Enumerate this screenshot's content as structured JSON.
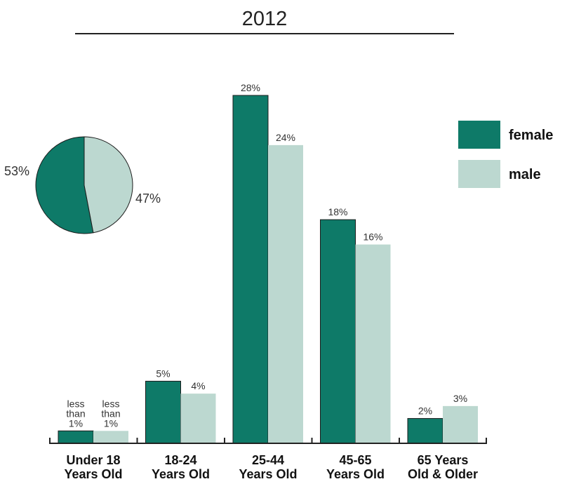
{
  "chart_data": [
    {
      "type": "bar",
      "title": "2012",
      "categories": [
        [
          "Under 18",
          "Years Old"
        ],
        [
          "18-24",
          "Years Old"
        ],
        [
          "25-44",
          "Years Old"
        ],
        [
          "45-65",
          "Years Old"
        ],
        [
          "65 Years",
          "Old & Older"
        ]
      ],
      "series": [
        {
          "name": "female",
          "color": "#0e7a68",
          "values": [
            1,
            5,
            28,
            18,
            2
          ],
          "labels": [
            [
              "less",
              "than",
              "1%"
            ],
            [
              "5%"
            ],
            [
              "28%"
            ],
            [
              "18%"
            ],
            [
              "2%"
            ]
          ]
        },
        {
          "name": "male",
          "color": "#bcd8d0",
          "values": [
            1,
            4,
            24,
            16,
            3
          ],
          "labels": [
            [
              "less",
              "than",
              "1%"
            ],
            [
              "4%"
            ],
            [
              "24%"
            ],
            [
              "16%"
            ],
            [
              "3%"
            ]
          ]
        }
      ],
      "ylim": [
        0,
        28
      ],
      "legend": "right",
      "grid": false
    },
    {
      "type": "pie",
      "slices": [
        {
          "name": "female",
          "value": 53,
          "label": "53%",
          "color": "#0e7a68"
        },
        {
          "name": "male",
          "value": 47,
          "label": "47%",
          "color": "#bcd8d0"
        }
      ]
    }
  ]
}
